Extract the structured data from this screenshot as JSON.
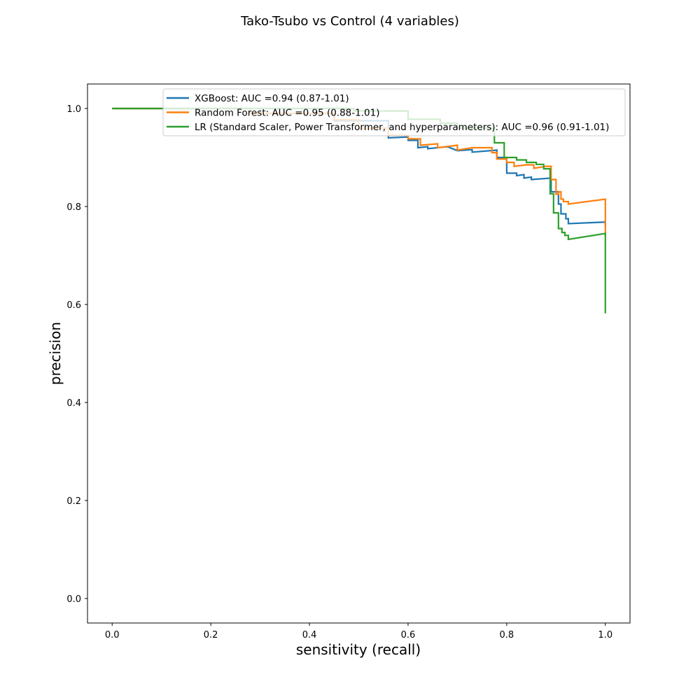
{
  "chart_data": {
    "type": "line",
    "title": "Tako-Tsubo vs Control (4 variables)",
    "xlabel": "sensitivity (recall)",
    "ylabel": "precision",
    "xlim": [
      -0.05,
      1.05
    ],
    "ylim": [
      -0.05,
      1.05
    ],
    "x_ticks": [
      "0.0",
      "0.2",
      "0.4",
      "0.6",
      "0.8",
      "1.0"
    ],
    "y_ticks": [
      "0.0",
      "0.2",
      "0.4",
      "0.6",
      "0.8",
      "1.0"
    ],
    "grid": false,
    "legend_position": "top-right",
    "series": [
      {
        "name": "XGBoost: AUC =0.94 (0.87-1.01)",
        "color": "#1f77b4",
        "points": [
          [
            0.0,
            1.0
          ],
          [
            0.3,
            1.0
          ],
          [
            0.3,
            0.99
          ],
          [
            0.45,
            0.99
          ],
          [
            0.45,
            0.975
          ],
          [
            0.56,
            0.975
          ],
          [
            0.56,
            0.94
          ],
          [
            0.6,
            0.942
          ],
          [
            0.6,
            0.935
          ],
          [
            0.62,
            0.935
          ],
          [
            0.62,
            0.92
          ],
          [
            0.64,
            0.922
          ],
          [
            0.64,
            0.918
          ],
          [
            0.68,
            0.922
          ],
          [
            0.7,
            0.914
          ],
          [
            0.73,
            0.916
          ],
          [
            0.73,
            0.911
          ],
          [
            0.78,
            0.915
          ],
          [
            0.78,
            0.9
          ],
          [
            0.8,
            0.9
          ],
          [
            0.8,
            0.868
          ],
          [
            0.82,
            0.868
          ],
          [
            0.82,
            0.863
          ],
          [
            0.835,
            0.865
          ],
          [
            0.835,
            0.858
          ],
          [
            0.85,
            0.86
          ],
          [
            0.85,
            0.855
          ],
          [
            0.89,
            0.858
          ],
          [
            0.89,
            0.83
          ],
          [
            0.905,
            0.83
          ],
          [
            0.905,
            0.805
          ],
          [
            0.91,
            0.805
          ],
          [
            0.91,
            0.785
          ],
          [
            0.92,
            0.785
          ],
          [
            0.92,
            0.775
          ],
          [
            0.925,
            0.775
          ],
          [
            0.925,
            0.765
          ],
          [
            0.995,
            0.768
          ],
          [
            1.0,
            0.768
          ],
          [
            1.0,
            0.76
          ]
        ]
      },
      {
        "name": "Random Forest: AUC =0.95 (0.88-1.01)",
        "color": "#ff7f0e",
        "points": [
          [
            0.0,
            1.0
          ],
          [
            0.28,
            1.0
          ],
          [
            0.28,
            0.99
          ],
          [
            0.45,
            0.99
          ],
          [
            0.45,
            0.977
          ],
          [
            0.5,
            0.977
          ],
          [
            0.5,
            0.96
          ],
          [
            0.56,
            0.96
          ],
          [
            0.56,
            0.945
          ],
          [
            0.6,
            0.945
          ],
          [
            0.6,
            0.938
          ],
          [
            0.625,
            0.938
          ],
          [
            0.625,
            0.925
          ],
          [
            0.66,
            0.928
          ],
          [
            0.66,
            0.92
          ],
          [
            0.7,
            0.925
          ],
          [
            0.7,
            0.915
          ],
          [
            0.73,
            0.92
          ],
          [
            0.77,
            0.92
          ],
          [
            0.77,
            0.91
          ],
          [
            0.78,
            0.91
          ],
          [
            0.78,
            0.897
          ],
          [
            0.8,
            0.897
          ],
          [
            0.8,
            0.89
          ],
          [
            0.815,
            0.89
          ],
          [
            0.815,
            0.882
          ],
          [
            0.84,
            0.885
          ],
          [
            0.855,
            0.885
          ],
          [
            0.855,
            0.878
          ],
          [
            0.88,
            0.882
          ],
          [
            0.89,
            0.882
          ],
          [
            0.89,
            0.855
          ],
          [
            0.9,
            0.855
          ],
          [
            0.9,
            0.825
          ],
          [
            0.905,
            0.825
          ],
          [
            0.905,
            0.83
          ],
          [
            0.91,
            0.83
          ],
          [
            0.91,
            0.815
          ],
          [
            0.915,
            0.815
          ],
          [
            0.915,
            0.81
          ],
          [
            0.925,
            0.81
          ],
          [
            0.925,
            0.805
          ],
          [
            1.0,
            0.815
          ],
          [
            1.0,
            0.74
          ]
        ]
      },
      {
        "name": "LR (Standard Scaler, Power Transformer, and hyperparameters): AUC =0.96 (0.91-1.01)",
        "color": "#2ca02c",
        "points": [
          [
            0.0,
            1.0
          ],
          [
            0.49,
            1.0
          ],
          [
            0.49,
            0.995
          ],
          [
            0.6,
            0.995
          ],
          [
            0.6,
            0.978
          ],
          [
            0.665,
            0.978
          ],
          [
            0.665,
            0.97
          ],
          [
            0.7,
            0.97
          ],
          [
            0.7,
            0.96
          ],
          [
            0.775,
            0.96
          ],
          [
            0.775,
            0.93
          ],
          [
            0.795,
            0.93
          ],
          [
            0.795,
            0.9
          ],
          [
            0.82,
            0.9
          ],
          [
            0.82,
            0.895
          ],
          [
            0.84,
            0.895
          ],
          [
            0.84,
            0.89
          ],
          [
            0.86,
            0.89
          ],
          [
            0.86,
            0.886
          ],
          [
            0.875,
            0.886
          ],
          [
            0.875,
            0.877
          ],
          [
            0.888,
            0.877
          ],
          [
            0.888,
            0.826
          ],
          [
            0.895,
            0.826
          ],
          [
            0.895,
            0.787
          ],
          [
            0.905,
            0.787
          ],
          [
            0.905,
            0.755
          ],
          [
            0.912,
            0.755
          ],
          [
            0.912,
            0.747
          ],
          [
            0.918,
            0.747
          ],
          [
            0.918,
            0.741
          ],
          [
            0.925,
            0.741
          ],
          [
            0.925,
            0.733
          ],
          [
            1.0,
            0.745
          ],
          [
            1.0,
            0.582
          ]
        ]
      }
    ]
  }
}
